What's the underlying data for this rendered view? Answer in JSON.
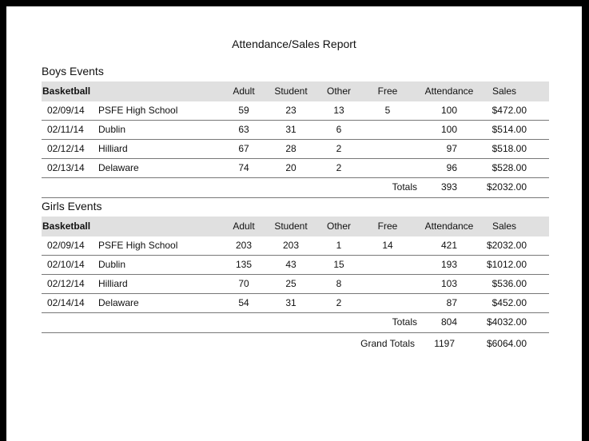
{
  "title": "Attendance/Sales Report",
  "columns": [
    "Adult",
    "Student",
    "Other",
    "Free",
    "Attendance",
    "Sales"
  ],
  "sections": [
    {
      "name": "Boys Events",
      "group": "Basketball",
      "rows": [
        {
          "date": "02/09/14",
          "venue": "PSFE High School",
          "adult": "59",
          "student": "23",
          "other": "13",
          "free": "5",
          "attendance": "100",
          "sales": "$472.00"
        },
        {
          "date": "02/11/14",
          "venue": "Dublin",
          "adult": "63",
          "student": "31",
          "other": "6",
          "free": "",
          "attendance": "100",
          "sales": "$514.00"
        },
        {
          "date": "02/12/14",
          "venue": "Hilliard",
          "adult": "67",
          "student": "28",
          "other": "2",
          "free": "",
          "attendance": "97",
          "sales": "$518.00"
        },
        {
          "date": "02/13/14",
          "venue": "Delaware",
          "adult": "74",
          "student": "20",
          "other": "2",
          "free": "",
          "attendance": "96",
          "sales": "$528.00"
        }
      ],
      "totals": {
        "label": "Totals",
        "attendance": "393",
        "sales": "$2032.00"
      }
    },
    {
      "name": "Girls Events",
      "group": "Basketball",
      "rows": [
        {
          "date": "02/09/14",
          "venue": "PSFE High School",
          "adult": "203",
          "student": "203",
          "other": "1",
          "free": "14",
          "attendance": "421",
          "sales": "$2032.00"
        },
        {
          "date": "02/10/14",
          "venue": "Dublin",
          "adult": "135",
          "student": "43",
          "other": "15",
          "free": "",
          "attendance": "193",
          "sales": "$1012.00"
        },
        {
          "date": "02/12/14",
          "venue": "Hilliard",
          "adult": "70",
          "student": "25",
          "other": "8",
          "free": "",
          "attendance": "103",
          "sales": "$536.00"
        },
        {
          "date": "02/14/14",
          "venue": "Delaware",
          "adult": "54",
          "student": "31",
          "other": "2",
          "free": "",
          "attendance": "87",
          "sales": "$452.00"
        }
      ],
      "totals": {
        "label": "Totals",
        "attendance": "804",
        "sales": "$4032.00"
      }
    }
  ],
  "grand_totals": {
    "label": "Grand Totals",
    "attendance": "1197",
    "sales": "$6064.00"
  }
}
